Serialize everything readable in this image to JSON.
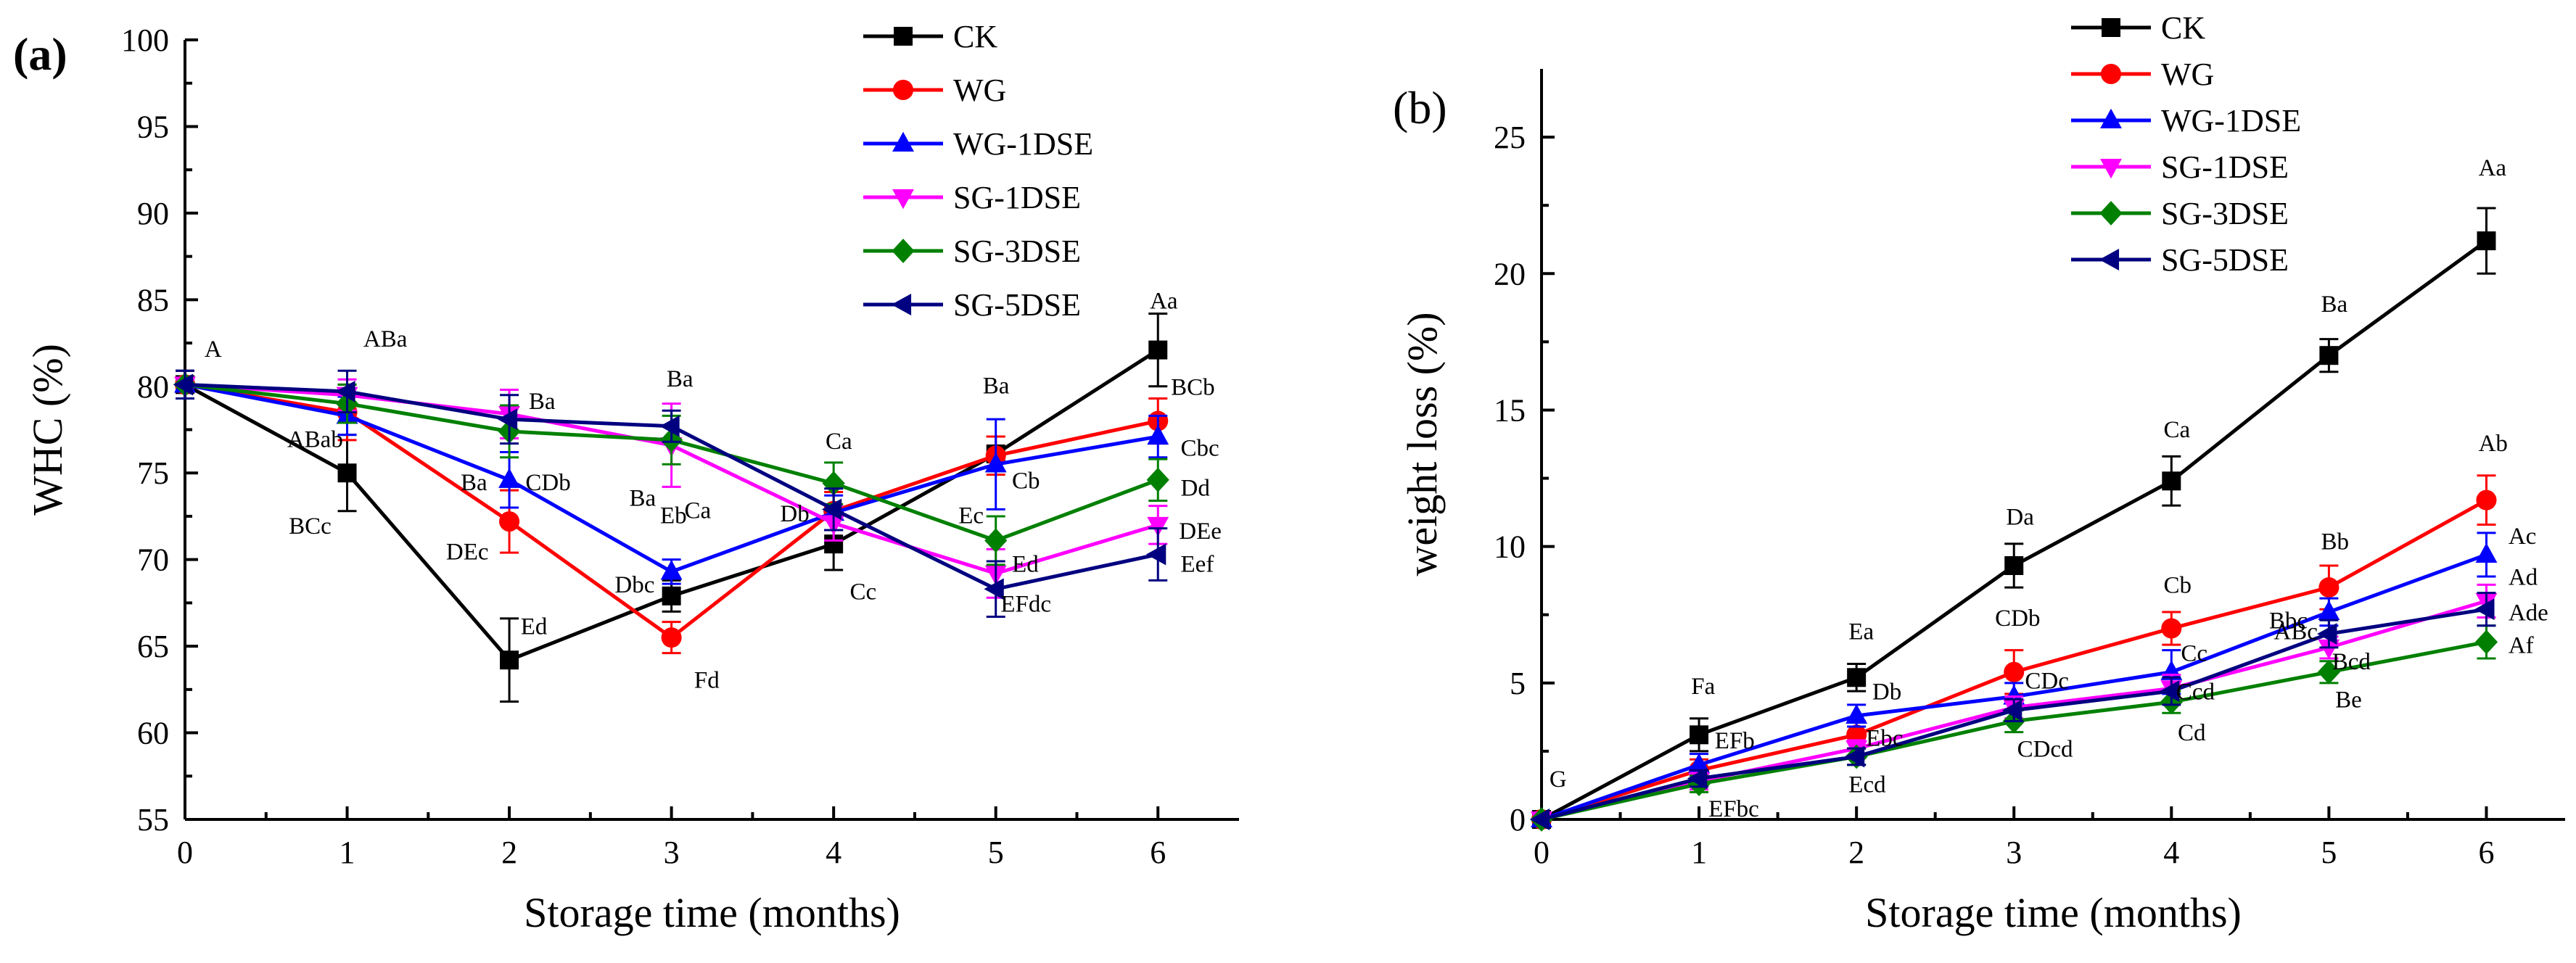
{
  "colors": {
    "CK": "#000000",
    "WG": "#ff0000",
    "WG-1DSE": "#0000ff",
    "SG-1DSE": "#ff00ff",
    "SG-3DSE": "#008000",
    "SG-5DSE": "#000080"
  },
  "chart_data": [
    {
      "type": "line",
      "panel": "(a)",
      "title": "",
      "xlabel": "Storage time (months)",
      "ylabel": "WHC (%)",
      "xlim": [
        0,
        6.5
      ],
      "ylim": [
        55,
        100
      ],
      "xticks": [
        0,
        1,
        2,
        3,
        4,
        5,
        6
      ],
      "yticks": [
        55,
        60,
        65,
        70,
        75,
        80,
        85,
        90,
        95,
        100
      ],
      "x": [
        0,
        1,
        2,
        3,
        4,
        5,
        6
      ],
      "legend": [
        "CK",
        "WG",
        "WG-1DSE",
        "SG-1DSE",
        "SG-3DSE",
        "SG-5DSE"
      ],
      "legend_position": "top-right",
      "series": [
        {
          "name": "CK",
          "marker": "square",
          "values": [
            80.1,
            75.0,
            64.2,
            67.9,
            70.9,
            76.1,
            82.1
          ],
          "errors": [
            0.8,
            2.2,
            2.4,
            0.9,
            1.5,
            1.0,
            2.1
          ]
        },
        {
          "name": "WG",
          "marker": "circle",
          "values": [
            80.1,
            78.5,
            72.2,
            65.5,
            72.8,
            76.0,
            78.0
          ],
          "errors": [
            0.8,
            1.6,
            1.8,
            0.9,
            1.1,
            1.1,
            1.3
          ]
        },
        {
          "name": "WG-1DSE",
          "marker": "triangle-up",
          "values": [
            80.1,
            78.3,
            74.6,
            69.3,
            72.7,
            75.5,
            77.1
          ],
          "errors": [
            0.8,
            1.1,
            1.6,
            0.7,
            1.0,
            2.6,
            1.2
          ]
        },
        {
          "name": "SG-1DSE",
          "marker": "triangle-down",
          "values": [
            80.1,
            79.5,
            78.4,
            76.6,
            72.1,
            69.2,
            72.0
          ],
          "errors": [
            0.8,
            0.9,
            1.4,
            2.4,
            1.0,
            1.4,
            1.1
          ]
        },
        {
          "name": "SG-3DSE",
          "marker": "diamond",
          "values": [
            80.1,
            79.0,
            77.4,
            76.9,
            74.4,
            71.1,
            74.6
          ],
          "errors": [
            0.8,
            1.1,
            1.5,
            1.4,
            1.2,
            1.4,
            1.2
          ]
        },
        {
          "name": "SG-5DSE",
          "marker": "triangle-left",
          "values": [
            80.1,
            79.7,
            78.1,
            77.7,
            72.9,
            68.3,
            70.3
          ],
          "errors": [
            0.8,
            1.2,
            1.4,
            0.9,
            1.2,
            1.6,
            1.5
          ]
        }
      ],
      "annotations": [
        {
          "text": "A",
          "x": 0,
          "y": 80.1,
          "dx": 0.12,
          "dy": 1.6
        },
        {
          "text": "ABa",
          "x": 1,
          "y": 79.7,
          "dx": 0.1,
          "dy": 2.6
        },
        {
          "text": "ABab",
          "x": 1,
          "y": 78.3,
          "dx": -0.37,
          "dy": -1.8
        },
        {
          "text": "BCc",
          "x": 1,
          "y": 75.0,
          "dx": -0.36,
          "dy": -3.5
        },
        {
          "text": "Ba",
          "x": 2,
          "y": 78.4,
          "dx": 0.12,
          "dy": 0.3
        },
        {
          "text": "Ba",
          "x": 2,
          "y": 77.4,
          "dx": -0.3,
          "dy": -3.4
        },
        {
          "text": "CDb",
          "x": 2,
          "y": 74.6,
          "dx": 0.1,
          "dy": -0.6
        },
        {
          "text": "DEc",
          "x": 2,
          "y": 72.2,
          "dx": -0.39,
          "dy": -2.2
        },
        {
          "text": "Ed",
          "x": 2,
          "y": 64.2,
          "dx": 0.07,
          "dy": 1.5
        },
        {
          "text": "Ba",
          "x": 3,
          "y": 77.7,
          "dx": -0.03,
          "dy": 2.3
        },
        {
          "text": "Ba",
          "x": 3,
          "y": 76.6,
          "dx": -0.26,
          "dy": -3.5
        },
        {
          "text": "Ca",
          "x": 3,
          "y": 76.6,
          "dx": 0.08,
          "dy": -4.2
        },
        {
          "text": "Eb",
          "x": 3,
          "y": 69.3,
          "dx": -0.07,
          "dy": 2.8
        },
        {
          "text": "Dbc",
          "x": 3,
          "y": 67.9,
          "dx": -0.35,
          "dy": 0.2
        },
        {
          "text": "Fd",
          "x": 3,
          "y": 65.5,
          "dx": 0.14,
          "dy": -2.9
        },
        {
          "text": "Ca",
          "x": 4,
          "y": 74.4,
          "dx": -0.05,
          "dy": 2.0
        },
        {
          "text": "Db",
          "x": 4,
          "y": 72.7,
          "dx": -0.33,
          "dy": -0.5
        },
        {
          "text": "Cc",
          "x": 4,
          "y": 70.9,
          "dx": 0.1,
          "dy": -3.2
        },
        {
          "text": "Ba",
          "x": 5,
          "y": 76.1,
          "dx": -0.08,
          "dy": 3.5
        },
        {
          "text": "Cb",
          "x": 5,
          "y": 75.5,
          "dx": 0.1,
          "dy": -1.4
        },
        {
          "text": "Ec",
          "x": 5,
          "y": 71.1,
          "dx": -0.23,
          "dy": 1.0
        },
        {
          "text": "Ed",
          "x": 5,
          "y": 69.2,
          "dx": 0.1,
          "dy": 0.1
        },
        {
          "text": "EFdc",
          "x": 5,
          "y": 68.3,
          "dx": 0.03,
          "dy": -1.3
        },
        {
          "text": "Aa",
          "x": 6,
          "y": 82.1,
          "dx": -0.05,
          "dy": 2.4
        },
        {
          "text": "BCb",
          "x": 6,
          "y": 78.0,
          "dx": 0.08,
          "dy": 1.5
        },
        {
          "text": "Cbc",
          "x": 6,
          "y": 77.1,
          "dx": 0.14,
          "dy": -1.1
        },
        {
          "text": "Dd",
          "x": 6,
          "y": 74.6,
          "dx": 0.14,
          "dy": -0.9
        },
        {
          "text": "DEe",
          "x": 6,
          "y": 72.0,
          "dx": 0.13,
          "dy": -0.8
        },
        {
          "text": "Eef",
          "x": 6,
          "y": 70.3,
          "dx": 0.14,
          "dy": -1.0
        }
      ]
    },
    {
      "type": "line",
      "panel": "(b)",
      "title": "",
      "xlabel": "Storage time (months)",
      "ylabel": "weight loss (%)",
      "xlim": [
        0,
        6.5
      ],
      "ylim": [
        0,
        27.5
      ],
      "xticks": [
        0,
        1,
        2,
        3,
        4,
        5,
        6
      ],
      "yticks": [
        0,
        5,
        10,
        15,
        20,
        25
      ],
      "x": [
        0,
        1,
        2,
        3,
        4,
        5,
        6
      ],
      "legend": [
        "CK",
        "WG",
        "WG-1DSE",
        "SG-1DSE",
        "SG-3DSE",
        "SG-5DSE"
      ],
      "legend_position": "top-center",
      "series": [
        {
          "name": "CK",
          "marker": "square",
          "values": [
            0,
            3.1,
            5.2,
            9.3,
            12.4,
            17.0,
            21.2
          ],
          "errors": [
            0,
            0.6,
            0.5,
            0.8,
            0.9,
            0.6,
            1.2
          ]
        },
        {
          "name": "WG",
          "marker": "circle",
          "values": [
            0,
            1.8,
            3.1,
            5.4,
            7.0,
            8.5,
            11.7
          ],
          "errors": [
            0,
            0.4,
            0.5,
            0.8,
            0.6,
            0.8,
            0.9
          ]
        },
        {
          "name": "WG-1DSE",
          "marker": "triangle-up",
          "values": [
            0,
            2.0,
            3.8,
            4.5,
            5.4,
            7.6,
            9.7
          ],
          "errors": [
            0,
            0.4,
            0.4,
            0.5,
            0.8,
            0.5,
            0.8
          ]
        },
        {
          "name": "SG-1DSE",
          "marker": "triangle-down",
          "values": [
            0,
            1.4,
            2.6,
            4.1,
            4.8,
            6.3,
            8.0
          ],
          "errors": [
            0,
            0.3,
            0.3,
            0.4,
            0.5,
            0.4,
            0.6
          ]
        },
        {
          "name": "SG-3DSE",
          "marker": "diamond",
          "values": [
            0,
            1.3,
            2.3,
            3.6,
            4.3,
            5.4,
            6.5
          ],
          "errors": [
            0,
            0.3,
            0.3,
            0.4,
            0.4,
            0.4,
            0.6
          ]
        },
        {
          "name": "SG-5DSE",
          "marker": "triangle-left",
          "values": [
            0,
            1.5,
            2.3,
            4.0,
            4.7,
            6.8,
            7.7
          ],
          "errors": [
            0,
            0.3,
            0.3,
            0.4,
            0.5,
            0.5,
            0.6
          ]
        }
      ],
      "annotations": [
        {
          "text": "G",
          "x": 0,
          "y": 0,
          "dx": 0.05,
          "dy": 1.2
        },
        {
          "text": "Fa",
          "x": 1,
          "y": 3.1,
          "dx": -0.05,
          "dy": 1.5
        },
        {
          "text": "EFb",
          "x": 1,
          "y": 2.0,
          "dx": 0.1,
          "dy": 0.6
        },
        {
          "text": "EFbc",
          "x": 1,
          "y": 1.3,
          "dx": 0.06,
          "dy": -1.2
        },
        {
          "text": "Ea",
          "x": 2,
          "y": 5.2,
          "dx": -0.05,
          "dy": 1.4
        },
        {
          "text": "Db",
          "x": 2,
          "y": 3.8,
          "dx": 0.1,
          "dy": 0.6
        },
        {
          "text": "Ebc",
          "x": 2,
          "y": 3.1,
          "dx": 0.06,
          "dy": -0.4
        },
        {
          "text": "Ecd",
          "x": 2,
          "y": 2.3,
          "dx": -0.05,
          "dy": -1.3
        },
        {
          "text": "Da",
          "x": 3,
          "y": 9.3,
          "dx": -0.05,
          "dy": 1.5
        },
        {
          "text": "CDb",
          "x": 3,
          "y": 5.4,
          "dx": -0.12,
          "dy": 1.7
        },
        {
          "text": "CDc",
          "x": 3,
          "y": 4.5,
          "dx": 0.07,
          "dy": 0.3
        },
        {
          "text": "CDcd",
          "x": 3,
          "y": 3.6,
          "dx": 0.02,
          "dy": -1.3
        },
        {
          "text": "Ca",
          "x": 4,
          "y": 12.4,
          "dx": -0.05,
          "dy": 1.6
        },
        {
          "text": "Cb",
          "x": 4,
          "y": 7.0,
          "dx": -0.05,
          "dy": 1.3
        },
        {
          "text": "Cc",
          "x": 4,
          "y": 5.4,
          "dx": 0.06,
          "dy": 0.4
        },
        {
          "text": "Ccd",
          "x": 4,
          "y": 4.8,
          "dx": 0.03,
          "dy": -0.4
        },
        {
          "text": "Cd",
          "x": 4,
          "y": 4.3,
          "dx": 0.04,
          "dy": -1.4
        },
        {
          "text": "Ba",
          "x": 5,
          "y": 17.0,
          "dx": -0.05,
          "dy": 1.6
        },
        {
          "text": "Bb",
          "x": 5,
          "y": 8.5,
          "dx": -0.05,
          "dy": 1.4
        },
        {
          "text": "Bbc",
          "x": 5,
          "y": 6.8,
          "dx": -0.38,
          "dy": 0.2
        },
        {
          "text": "ABc",
          "x": 5,
          "y": 7.6,
          "dx": -0.35,
          "dy": -1.0
        },
        {
          "text": "Bcd",
          "x": 5,
          "y": 6.3,
          "dx": 0.02,
          "dy": -0.8
        },
        {
          "text": "Be",
          "x": 5,
          "y": 5.4,
          "dx": 0.04,
          "dy": -1.3
        },
        {
          "text": "Aa",
          "x": 6,
          "y": 21.2,
          "dx": -0.05,
          "dy": 2.4
        },
        {
          "text": "Ab",
          "x": 6,
          "y": 11.7,
          "dx": -0.05,
          "dy": 1.8
        },
        {
          "text": "Ac",
          "x": 6,
          "y": 9.7,
          "dx": 0.14,
          "dy": 0.4
        },
        {
          "text": "Ad",
          "x": 6,
          "y": 8.0,
          "dx": 0.14,
          "dy": 0.6
        },
        {
          "text": "Ade",
          "x": 6,
          "y": 7.7,
          "dx": 0.14,
          "dy": -0.4
        },
        {
          "text": "Af",
          "x": 6,
          "y": 6.5,
          "dx": 0.14,
          "dy": -0.4
        }
      ]
    }
  ]
}
